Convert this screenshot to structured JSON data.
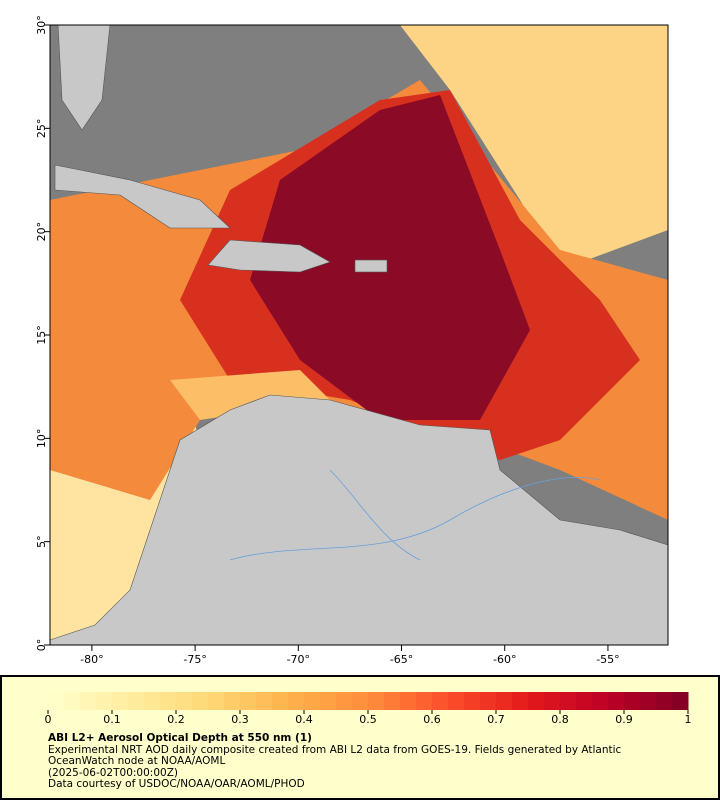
{
  "map": {
    "xlim": [
      -82.03,
      -52.09
    ],
    "ylim": [
      0,
      30
    ],
    "xticks": [
      {
        "value": -80,
        "label": "-80°"
      },
      {
        "value": -75,
        "label": "-75°"
      },
      {
        "value": -70,
        "label": "-70°"
      },
      {
        "value": -65,
        "label": "-65°"
      },
      {
        "value": -60,
        "label": "-60°"
      },
      {
        "value": -55,
        "label": "-55°"
      }
    ],
    "yticks": [
      {
        "value": 0,
        "label": "0°"
      },
      {
        "value": 5,
        "label": "5°"
      },
      {
        "value": 10,
        "label": "10°"
      },
      {
        "value": 15,
        "label": "15°"
      },
      {
        "value": 20,
        "label": "20°"
      },
      {
        "value": 25,
        "label": "25°"
      },
      {
        "value": 30,
        "label": "30°"
      }
    ]
  },
  "colorbar": {
    "range": [
      0,
      1
    ],
    "ticks": [
      0,
      0.1,
      0.2,
      0.3,
      0.4,
      0.5,
      0.6,
      0.7,
      0.8,
      0.9,
      1
    ]
  },
  "caption": {
    "title": "ABI L2+ Aerosol Optical Depth at 550 nm (1)",
    "description": "Experimental NRT AOD daily composite created from ABI L2 data from GOES-19. Fields generated by Atlantic OceanWatch node at NOAA/AOML",
    "time": "(2025-06-02T00:00:00Z)",
    "credit": "Data courtesy of USDOC/NOAA/OAR/AOML/PHOD"
  }
}
